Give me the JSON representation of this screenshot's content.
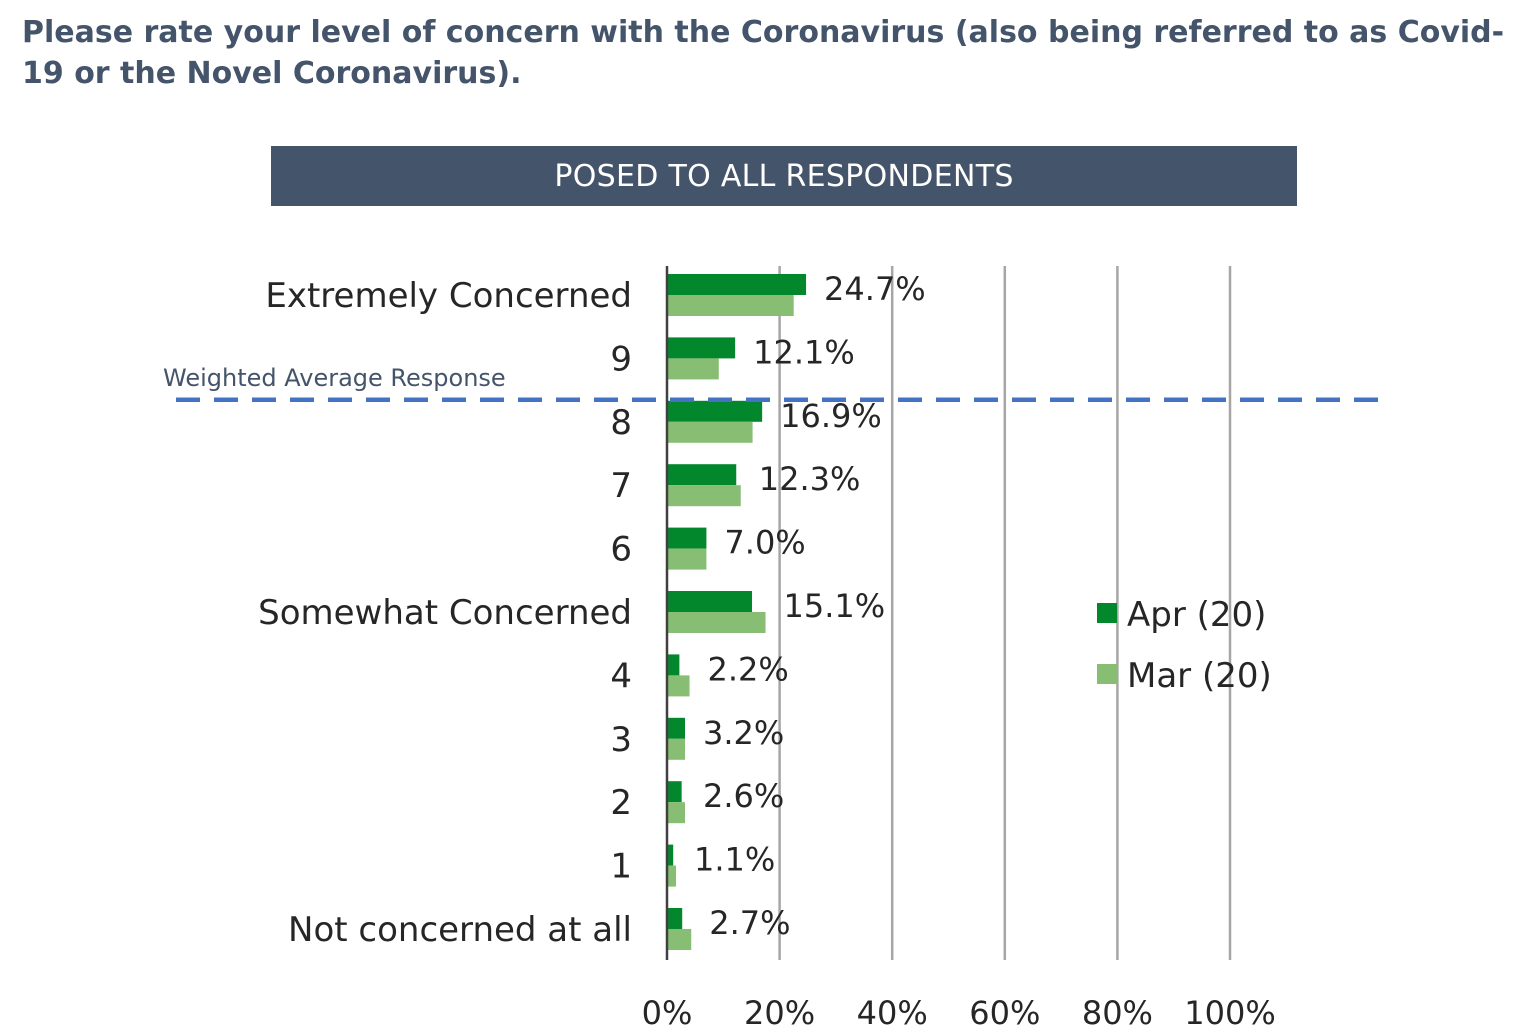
{
  "question": "Please rate your level of concern with the Coronavirus (also being referred to as Covid-19 or the Novel Coronavirus).",
  "banner": "POSED TO ALL RESPONDENTS",
  "colors": {
    "apr": "#03872c",
    "mar": "#88bd74",
    "banner": "#44546a",
    "reference_line": "#4472c4",
    "gridline": "#a6a6a6",
    "axis": "#404040"
  },
  "chart_data": {
    "type": "bar",
    "orientation": "horizontal",
    "categories": [
      "Extremely Concerned",
      "9",
      "8",
      "7",
      "6",
      "Somewhat Concerned",
      "4",
      "3",
      "2",
      "1",
      "Not concerned at all"
    ],
    "series": [
      {
        "name": "Apr (20)",
        "values": [
          24.7,
          12.1,
          16.9,
          12.3,
          7.0,
          15.1,
          2.2,
          3.2,
          2.6,
          1.1,
          2.7
        ]
      },
      {
        "name": "Mar (20)",
        "values": [
          22.5,
          9.2,
          15.2,
          13.1,
          7.0,
          17.5,
          4.0,
          3.2,
          3.2,
          1.6,
          4.3
        ]
      }
    ],
    "data_labels": [
      "24.7%",
      "12.1%",
      "16.9%",
      "12.3%",
      "7.0%",
      "15.1%",
      "2.2%",
      "3.2%",
      "2.6%",
      "1.1%",
      "2.7%"
    ],
    "xlim": [
      0,
      100
    ],
    "x_ticks": [
      "0%",
      "20%",
      "40%",
      "60%",
      "80%",
      "100%"
    ],
    "xlabel": "",
    "ylabel": "",
    "grid": "vertical",
    "legend_position": "right",
    "reference_line": {
      "label": "Weighted Average Response",
      "style": "dashed",
      "position_category": "8"
    }
  }
}
